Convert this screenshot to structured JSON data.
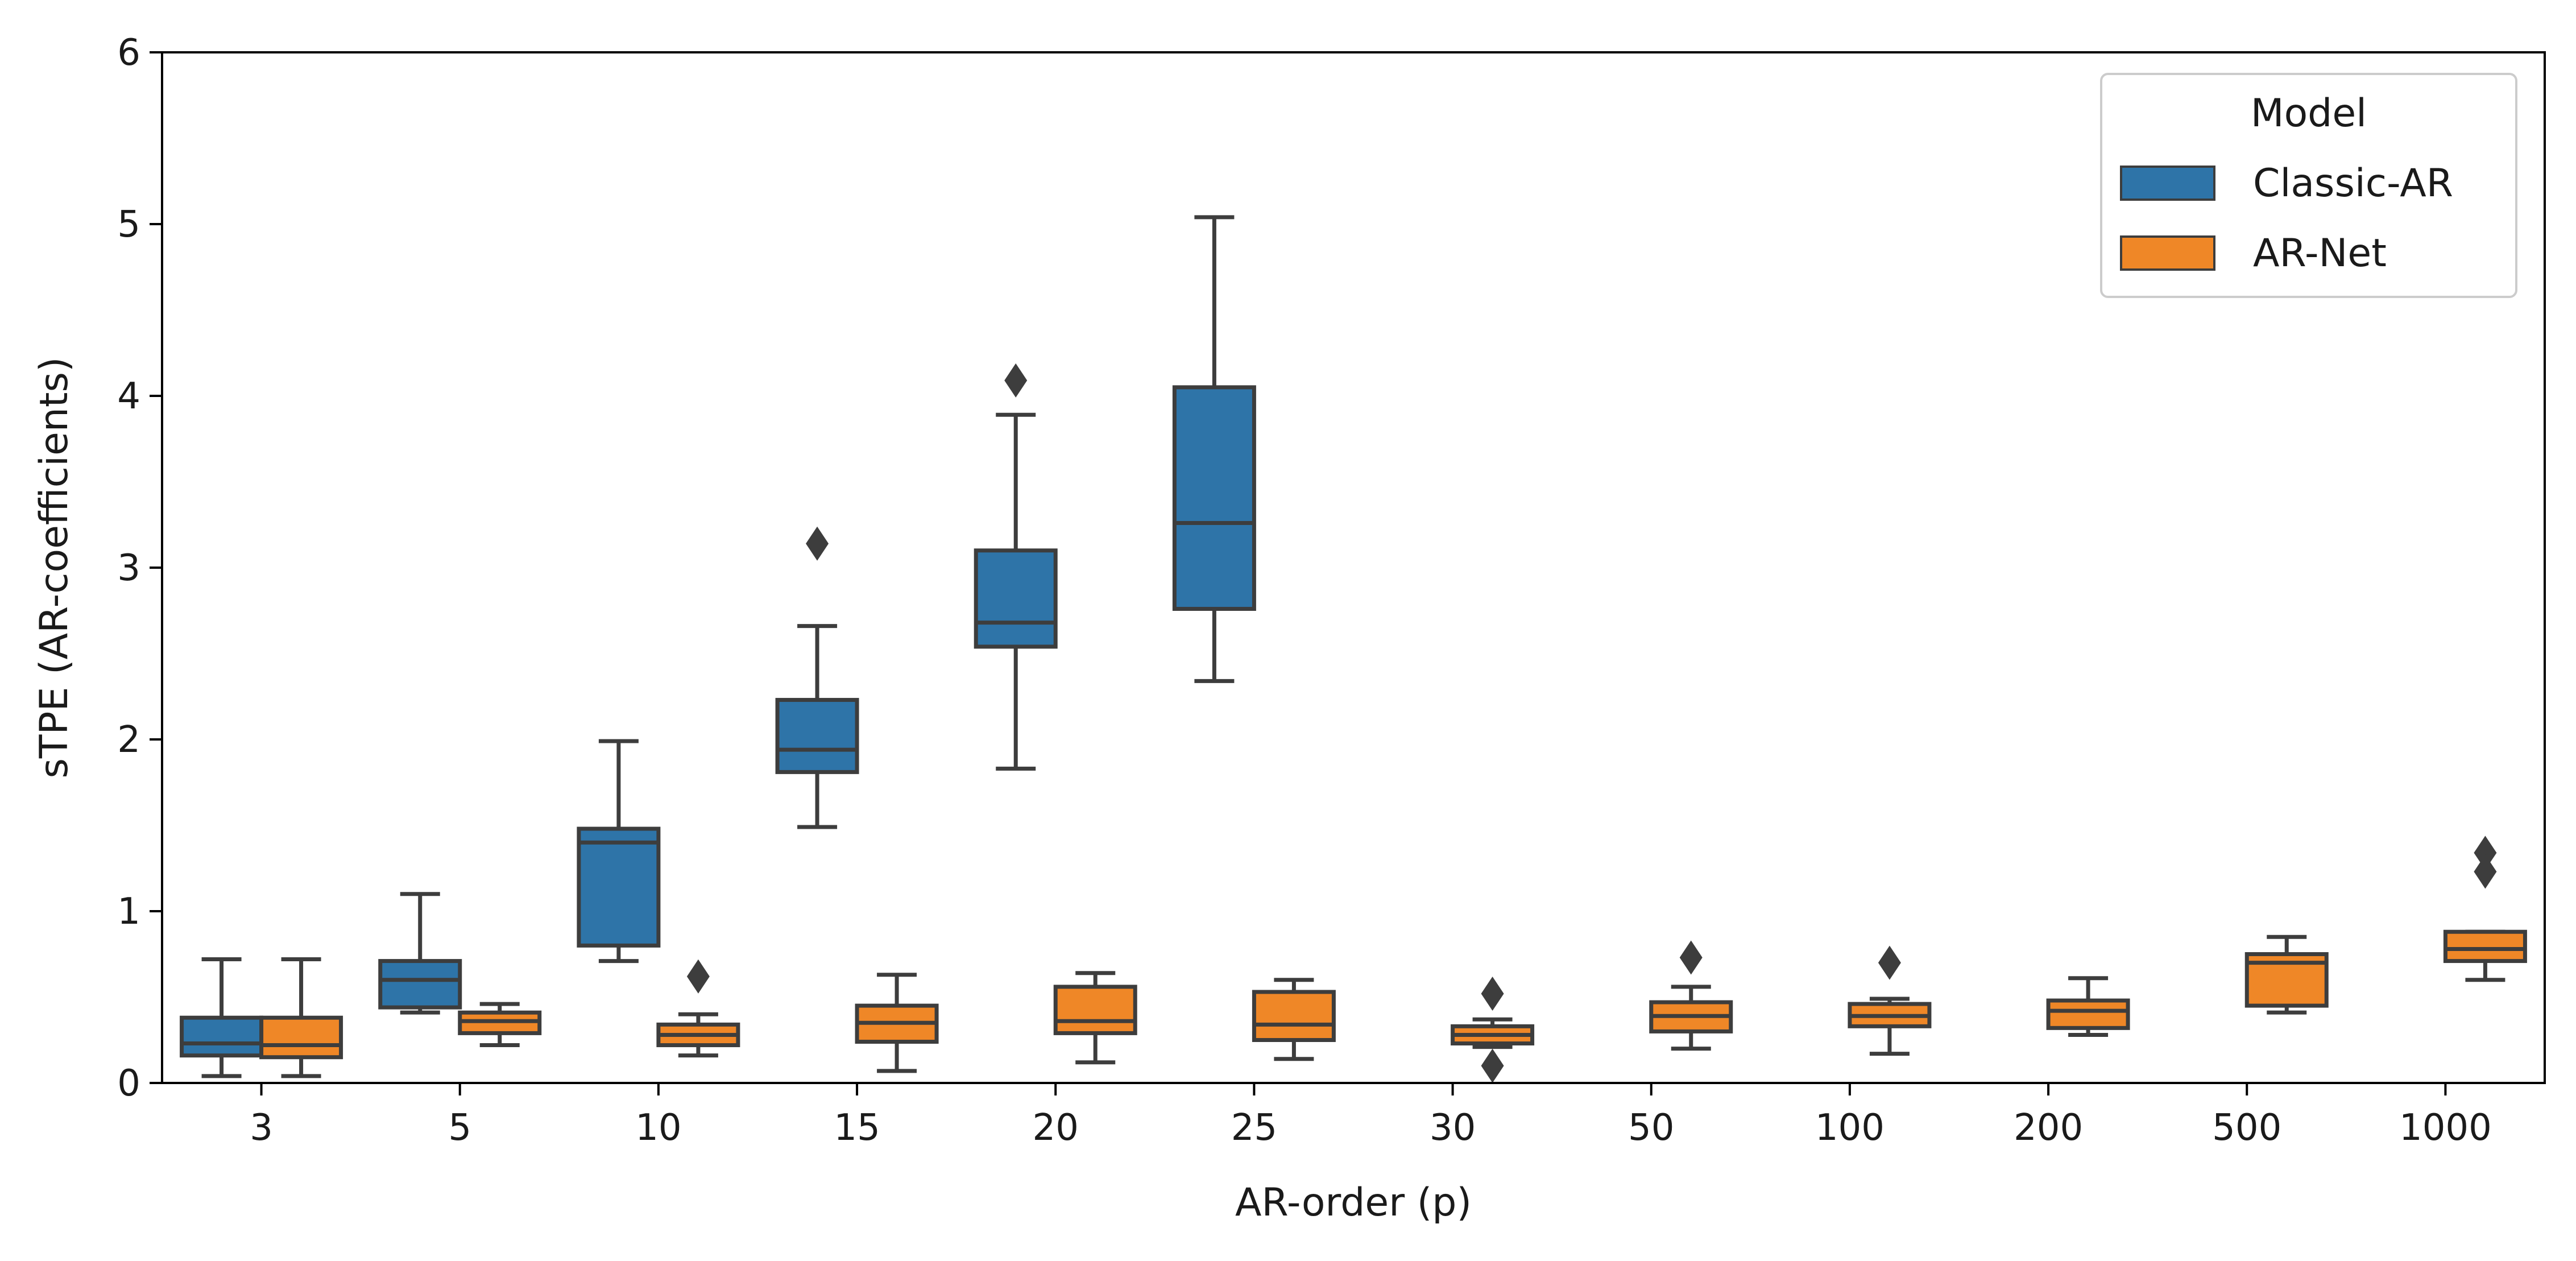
{
  "chart_data": {
    "type": "box",
    "xlabel": "AR-order (p)",
    "ylabel": "sTPE (AR-coefficients)",
    "ylim": [
      0,
      6
    ],
    "yticks": [
      "0",
      "1",
      "2",
      "3",
      "4",
      "5",
      "6"
    ],
    "categories": [
      "3",
      "5",
      "10",
      "15",
      "20",
      "25",
      "30",
      "50",
      "100",
      "200",
      "500",
      "1000"
    ],
    "grid": false,
    "legend": {
      "title": "Model",
      "placement": "top-right",
      "entries": [
        "Classic-AR",
        "AR-Net"
      ]
    },
    "colors": {
      "Classic-AR": "#2e74a8",
      "AR-Net": "#ef8727",
      "line": "#3d3d3d"
    },
    "series": [
      {
        "name": "Classic-AR",
        "boxes": [
          {
            "category": "3",
            "min": 0.04,
            "q1": 0.16,
            "median": 0.23,
            "q3": 0.38,
            "max": 0.72,
            "outliers": []
          },
          {
            "category": "5",
            "min": 0.41,
            "q1": 0.44,
            "median": 0.6,
            "q3": 0.71,
            "max": 1.1,
            "outliers": []
          },
          {
            "category": "10",
            "min": 0.71,
            "q1": 0.8,
            "median": 1.4,
            "q3": 1.48,
            "max": 1.99,
            "outliers": []
          },
          {
            "category": "15",
            "min": 1.49,
            "q1": 1.81,
            "median": 1.94,
            "q3": 2.23,
            "max": 2.66,
            "outliers": [
              3.14
            ]
          },
          {
            "category": "20",
            "min": 1.83,
            "q1": 2.54,
            "median": 2.68,
            "q3": 3.1,
            "max": 3.89,
            "outliers": [
              4.09
            ]
          },
          {
            "category": "25",
            "min": 2.34,
            "q1": 2.76,
            "median": 3.26,
            "q3": 4.05,
            "max": 5.04,
            "outliers": []
          }
        ]
      },
      {
        "name": "AR-Net",
        "boxes": [
          {
            "category": "3",
            "min": 0.04,
            "q1": 0.15,
            "median": 0.22,
            "q3": 0.38,
            "max": 0.72,
            "outliers": []
          },
          {
            "category": "5",
            "min": 0.22,
            "q1": 0.29,
            "median": 0.36,
            "q3": 0.41,
            "max": 0.46,
            "outliers": []
          },
          {
            "category": "10",
            "min": 0.16,
            "q1": 0.22,
            "median": 0.28,
            "q3": 0.34,
            "max": 0.4,
            "outliers": [
              0.62
            ]
          },
          {
            "category": "15",
            "min": 0.07,
            "q1": 0.24,
            "median": 0.35,
            "q3": 0.45,
            "max": 0.63,
            "outliers": []
          },
          {
            "category": "20",
            "min": 0.12,
            "q1": 0.29,
            "median": 0.36,
            "q3": 0.56,
            "max": 0.64,
            "outliers": []
          },
          {
            "category": "25",
            "min": 0.14,
            "q1": 0.25,
            "median": 0.34,
            "q3": 0.53,
            "max": 0.6,
            "outliers": []
          },
          {
            "category": "30",
            "min": 0.21,
            "q1": 0.23,
            "median": 0.28,
            "q3": 0.33,
            "max": 0.37,
            "outliers": [
              0.52,
              0.1
            ]
          },
          {
            "category": "50",
            "min": 0.2,
            "q1": 0.3,
            "median": 0.39,
            "q3": 0.47,
            "max": 0.56,
            "outliers": [
              0.73
            ]
          },
          {
            "category": "100",
            "min": 0.17,
            "q1": 0.33,
            "median": 0.39,
            "q3": 0.46,
            "max": 0.49,
            "outliers": [
              0.7
            ]
          },
          {
            "category": "200",
            "min": 0.28,
            "q1": 0.32,
            "median": 0.42,
            "q3": 0.48,
            "max": 0.61,
            "outliers": []
          },
          {
            "category": "500",
            "min": 0.41,
            "q1": 0.45,
            "median": 0.7,
            "q3": 0.75,
            "max": 0.85,
            "outliers": []
          },
          {
            "category": "1000",
            "min": 0.6,
            "q1": 0.71,
            "median": 0.78,
            "q3": 0.88,
            "max": 0.88,
            "outliers": [
              1.34,
              1.23
            ]
          }
        ]
      }
    ]
  }
}
